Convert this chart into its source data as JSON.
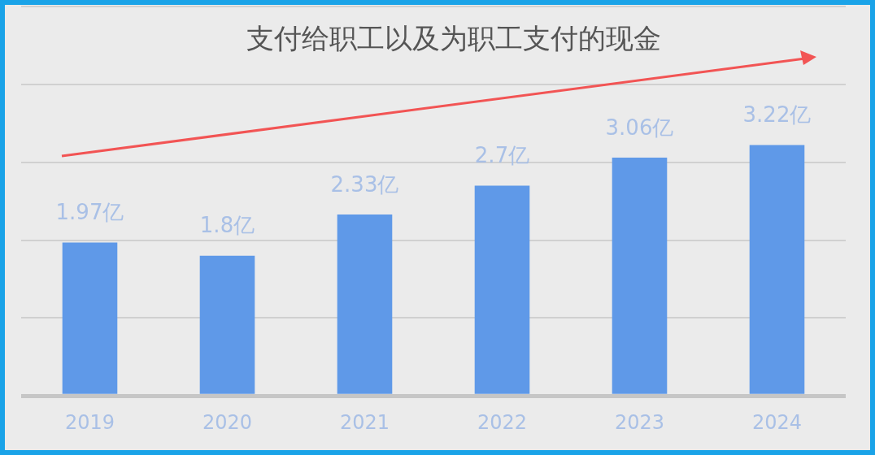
{
  "chart_data": {
    "type": "bar",
    "title": "支付给职工以及为职工支付的现金",
    "categories": [
      "2019",
      "2020",
      "2021",
      "2022",
      "2023",
      "2024"
    ],
    "values": [
      1.97,
      1.8,
      2.33,
      2.7,
      3.06,
      3.22
    ],
    "value_labels": [
      "1.97亿",
      "1.8亿",
      "2.33亿",
      "2.7亿",
      "3.06亿",
      "3.22亿"
    ],
    "color": "#5f99e8",
    "ylim": [
      0,
      5
    ],
    "tick_labels": "x",
    "grid": "y",
    "legend": false
  }
}
